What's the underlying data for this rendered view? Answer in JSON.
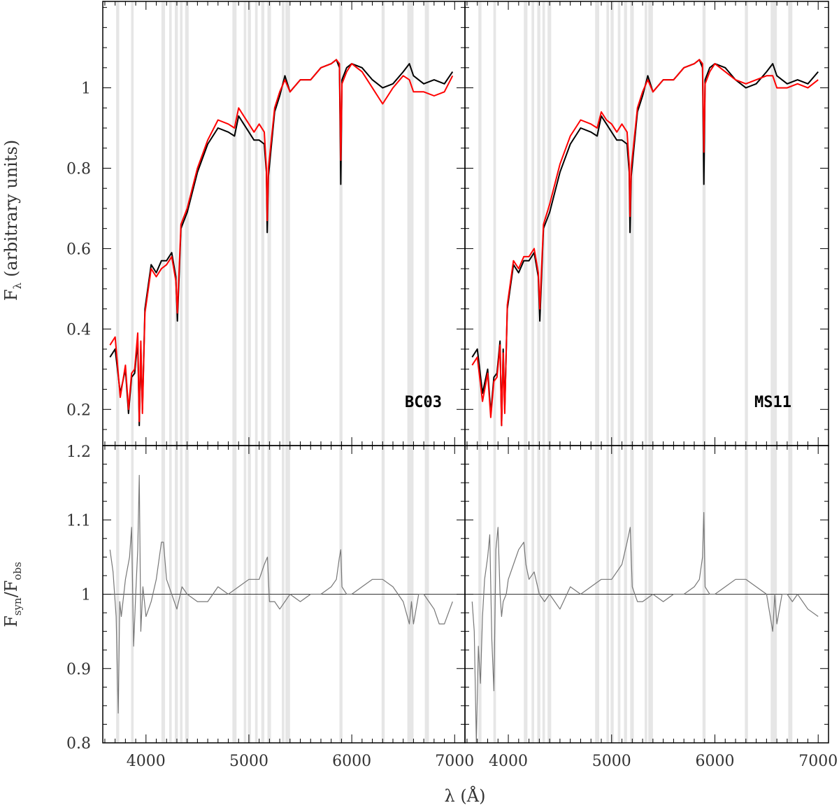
{
  "chart_data": {
    "type": "line",
    "layout": "2x2 panels, shared x axis, flux top row, residual bottom row",
    "x_axis": {
      "label_symbol": "λ",
      "label_unit": "(Å)",
      "range": [
        3580,
        7100
      ],
      "ticks": [
        4000,
        5000,
        6000,
        7000
      ],
      "tick_labels": [
        "4000",
        "5000",
        "6000",
        "7000"
      ]
    },
    "top_y_axis": {
      "label_symbol": "F",
      "label_sub": "λ",
      "label_rest": "(arbitrary units)",
      "range": [
        0.11,
        1.215
      ],
      "ticks": [
        0.2,
        0.4,
        0.6,
        0.8,
        1.0
      ],
      "tick_labels": [
        "0.2",
        "0.4",
        "0.6",
        "0.8",
        "1"
      ]
    },
    "bottom_y_axis": {
      "label_num": "F",
      "label_num_sub": "syn",
      "label_slash": "/",
      "label_den": "F",
      "label_den_sub": "obs",
      "range": [
        0.8,
        1.2
      ],
      "ticks": [
        0.8,
        0.9,
        1.0,
        1.1,
        1.2
      ],
      "tick_labels": [
        "0.8",
        "0.9",
        "1",
        "1.1",
        "1.2"
      ]
    },
    "masked_regions": [
      [
        3710,
        3740
      ],
      [
        3855,
        3880
      ],
      [
        4150,
        4185
      ],
      [
        4225,
        4250
      ],
      [
        4280,
        4310
      ],
      [
        4330,
        4355
      ],
      [
        4380,
        4415
      ],
      [
        4840,
        4880
      ],
      [
        4950,
        4975
      ],
      [
        4990,
        5020
      ],
      [
        5060,
        5085
      ],
      [
        5120,
        5150
      ],
      [
        5180,
        5215
      ],
      [
        5320,
        5345
      ],
      [
        5355,
        5400
      ],
      [
        5880,
        5910
      ],
      [
        6290,
        6320
      ],
      [
        6540,
        6600
      ],
      [
        6710,
        6750
      ]
    ],
    "panels": [
      {
        "label": "BC03",
        "x_max": 6980,
        "observed": {
          "color": "#000000",
          "x": [
            3650,
            3700,
            3750,
            3800,
            3830,
            3860,
            3890,
            3920,
            3935,
            3950,
            3965,
            3990,
            4050,
            4100,
            4150,
            4200,
            4250,
            4290,
            4305,
            4340,
            4400,
            4500,
            4600,
            4700,
            4800,
            4860,
            4900,
            4950,
            5000,
            5050,
            5100,
            5150,
            5170,
            5178,
            5190,
            5250,
            5300,
            5350,
            5400,
            5500,
            5600,
            5700,
            5800,
            5850,
            5880,
            5893,
            5905,
            5950,
            6000,
            6100,
            6200,
            6300,
            6400,
            6500,
            6560,
            6600,
            6700,
            6800,
            6900,
            6980
          ],
          "y": [
            0.33,
            0.35,
            0.24,
            0.3,
            0.19,
            0.28,
            0.29,
            0.37,
            0.16,
            0.35,
            0.2,
            0.45,
            0.56,
            0.54,
            0.57,
            0.57,
            0.59,
            0.53,
            0.42,
            0.65,
            0.69,
            0.79,
            0.86,
            0.9,
            0.89,
            0.88,
            0.93,
            0.91,
            0.89,
            0.87,
            0.87,
            0.86,
            0.79,
            0.64,
            0.78,
            0.94,
            0.98,
            1.03,
            0.99,
            1.02,
            1.02,
            1.05,
            1.06,
            1.07,
            1.05,
            0.76,
            1.02,
            1.05,
            1.06,
            1.05,
            1.02,
            1.0,
            1.01,
            1.04,
            1.06,
            1.03,
            1.01,
            1.02,
            1.01,
            1.04
          ]
        },
        "synthetic": {
          "color": "#ff0000",
          "x": [
            3650,
            3700,
            3750,
            3800,
            3830,
            3860,
            3890,
            3920,
            3935,
            3950,
            3965,
            3990,
            4050,
            4100,
            4150,
            4200,
            4250,
            4290,
            4305,
            4340,
            4400,
            4500,
            4600,
            4700,
            4800,
            4860,
            4900,
            4950,
            5000,
            5050,
            5100,
            5150,
            5170,
            5178,
            5190,
            5250,
            5300,
            5350,
            5400,
            5500,
            5600,
            5700,
            5800,
            5850,
            5880,
            5893,
            5905,
            5950,
            6000,
            6100,
            6200,
            6300,
            6400,
            6500,
            6560,
            6600,
            6700,
            6800,
            6900,
            6980
          ],
          "y": [
            0.36,
            0.38,
            0.23,
            0.31,
            0.2,
            0.29,
            0.3,
            0.39,
            0.17,
            0.37,
            0.19,
            0.44,
            0.55,
            0.53,
            0.55,
            0.56,
            0.58,
            0.52,
            0.44,
            0.66,
            0.7,
            0.8,
            0.87,
            0.92,
            0.91,
            0.9,
            0.95,
            0.93,
            0.91,
            0.89,
            0.91,
            0.89,
            0.8,
            0.67,
            0.8,
            0.95,
            0.99,
            1.02,
            0.99,
            1.02,
            1.02,
            1.05,
            1.06,
            1.07,
            1.06,
            0.82,
            1.01,
            1.04,
            1.06,
            1.04,
            1.0,
            0.96,
            1.0,
            1.03,
            1.02,
            0.99,
            0.99,
            0.98,
            0.99,
            1.03
          ]
        },
        "residual": {
          "color": "#777777",
          "x": [
            3650,
            3680,
            3710,
            3730,
            3745,
            3760,
            3800,
            3840,
            3860,
            3880,
            3900,
            3920,
            3935,
            3950,
            3970,
            4000,
            4050,
            4100,
            4150,
            4170,
            4200,
            4250,
            4300,
            4350,
            4400,
            4500,
            4600,
            4700,
            4800,
            4900,
            5000,
            5100,
            5150,
            5180,
            5200,
            5250,
            5300,
            5400,
            5500,
            5600,
            5700,
            5800,
            5850,
            5880,
            5893,
            5905,
            5950,
            6000,
            6100,
            6200,
            6300,
            6400,
            6500,
            6560,
            6580,
            6600,
            6650,
            6700,
            6750,
            6800,
            6850,
            6900,
            6980
          ],
          "y": [
            1.06,
            1.03,
            0.97,
            0.84,
            0.99,
            0.97,
            1.02,
            1.05,
            1.09,
            0.93,
            1.0,
            1.06,
            1.16,
            0.95,
            1.01,
            0.97,
            0.99,
            1.02,
            1.07,
            1.07,
            1.02,
            1.0,
            0.98,
            1.01,
            1.0,
            0.99,
            0.99,
            1.01,
            1.0,
            1.01,
            1.02,
            1.02,
            1.04,
            1.05,
            0.99,
            0.99,
            0.98,
            1.0,
            0.99,
            1.0,
            1.0,
            1.01,
            1.02,
            1.05,
            1.06,
            1.01,
            1.0,
            1.0,
            1.01,
            1.02,
            1.02,
            1.01,
            0.99,
            0.96,
            0.99,
            0.96,
            1.0,
            1.0,
            0.99,
            0.98,
            0.96,
            0.96,
            0.99
          ]
        }
      },
      {
        "label": "MS11",
        "x_max": 7000,
        "observed": {
          "color": "#000000",
          "x": [
            3650,
            3700,
            3750,
            3800,
            3830,
            3860,
            3890,
            3920,
            3935,
            3950,
            3965,
            3990,
            4050,
            4100,
            4150,
            4200,
            4250,
            4290,
            4305,
            4340,
            4400,
            4500,
            4600,
            4700,
            4800,
            4860,
            4900,
            4950,
            5000,
            5050,
            5100,
            5150,
            5170,
            5178,
            5190,
            5250,
            5300,
            5350,
            5400,
            5500,
            5600,
            5700,
            5800,
            5850,
            5880,
            5893,
            5905,
            5950,
            6000,
            6100,
            6200,
            6300,
            6400,
            6500,
            6560,
            6600,
            6700,
            6800,
            6900,
            7000
          ],
          "y": [
            0.33,
            0.35,
            0.24,
            0.3,
            0.19,
            0.28,
            0.29,
            0.37,
            0.16,
            0.35,
            0.2,
            0.45,
            0.56,
            0.54,
            0.57,
            0.57,
            0.59,
            0.53,
            0.42,
            0.65,
            0.69,
            0.79,
            0.86,
            0.9,
            0.89,
            0.88,
            0.93,
            0.91,
            0.89,
            0.87,
            0.87,
            0.86,
            0.79,
            0.64,
            0.78,
            0.94,
            0.98,
            1.03,
            0.99,
            1.02,
            1.02,
            1.05,
            1.06,
            1.07,
            1.05,
            0.76,
            1.02,
            1.05,
            1.06,
            1.05,
            1.02,
            1.0,
            1.01,
            1.04,
            1.06,
            1.03,
            1.01,
            1.02,
            1.01,
            1.04
          ]
        },
        "synthetic": {
          "color": "#ff0000",
          "x": [
            3650,
            3700,
            3750,
            3800,
            3830,
            3860,
            3890,
            3920,
            3935,
            3950,
            3965,
            3990,
            4050,
            4100,
            4150,
            4200,
            4250,
            4290,
            4305,
            4340,
            4400,
            4500,
            4600,
            4700,
            4800,
            4860,
            4900,
            4950,
            5000,
            5050,
            5100,
            5150,
            5170,
            5178,
            5190,
            5250,
            5300,
            5350,
            5400,
            5500,
            5600,
            5700,
            5800,
            5850,
            5880,
            5893,
            5905,
            5950,
            6000,
            6100,
            6200,
            6300,
            6400,
            6500,
            6560,
            6600,
            6700,
            6800,
            6900,
            7000
          ],
          "y": [
            0.31,
            0.33,
            0.22,
            0.29,
            0.18,
            0.27,
            0.28,
            0.36,
            0.16,
            0.34,
            0.19,
            0.46,
            0.57,
            0.55,
            0.58,
            0.58,
            0.6,
            0.54,
            0.45,
            0.66,
            0.71,
            0.81,
            0.88,
            0.92,
            0.91,
            0.9,
            0.94,
            0.92,
            0.91,
            0.89,
            0.91,
            0.89,
            0.81,
            0.68,
            0.8,
            0.95,
            0.99,
            1.02,
            0.99,
            1.02,
            1.02,
            1.05,
            1.06,
            1.07,
            1.06,
            0.84,
            1.01,
            1.04,
            1.06,
            1.04,
            1.02,
            1.01,
            1.02,
            1.03,
            1.03,
            1.0,
            1.0,
            1.01,
            1.0,
            1.02
          ]
        },
        "residual": {
          "color": "#777777",
          "x": [
            3650,
            3670,
            3690,
            3710,
            3730,
            3750,
            3770,
            3800,
            3820,
            3840,
            3860,
            3880,
            3900,
            3920,
            3935,
            3950,
            3980,
            4000,
            4050,
            4100,
            4150,
            4170,
            4200,
            4250,
            4300,
            4350,
            4400,
            4500,
            4600,
            4700,
            4800,
            4900,
            5000,
            5100,
            5150,
            5180,
            5200,
            5250,
            5300,
            5400,
            5500,
            5600,
            5700,
            5800,
            5850,
            5880,
            5893,
            5905,
            5950,
            6000,
            6100,
            6200,
            6300,
            6400,
            6500,
            6560,
            6580,
            6600,
            6650,
            6700,
            6750,
            6800,
            6900,
            7000
          ],
          "y": [
            0.99,
            0.95,
            0.8,
            0.93,
            0.88,
            0.97,
            1.02,
            1.05,
            1.08,
            0.94,
            0.87,
            1.06,
            1.09,
            1.0,
            0.97,
            0.99,
            1.0,
            1.02,
            1.04,
            1.06,
            1.07,
            1.04,
            1.02,
            1.03,
            1.0,
            0.99,
            1.0,
            0.98,
            1.01,
            1.0,
            1.01,
            1.02,
            1.02,
            1.04,
            1.07,
            1.09,
            1.01,
            0.99,
            0.99,
            1.0,
            0.99,
            1.0,
            1.0,
            1.01,
            1.02,
            1.05,
            1.11,
            1.01,
            1.0,
            1.0,
            1.01,
            1.02,
            1.02,
            1.01,
            1.0,
            0.95,
            1.0,
            0.96,
            1.0,
            1.0,
            0.99,
            1.0,
            0.98,
            0.97
          ]
        }
      }
    ]
  }
}
